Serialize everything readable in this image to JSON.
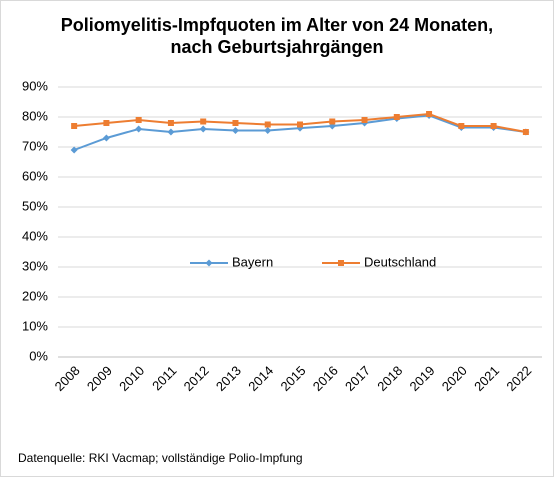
{
  "chart_data": {
    "type": "line",
    "title": "Poliomyelitis-Impfquoten im Alter von 24 Monaten, nach Geburtsjahrgängen",
    "categories": [
      "2008",
      "2009",
      "2010",
      "2011",
      "2012",
      "2013",
      "2014",
      "2015",
      "2016",
      "2017",
      "2018",
      "2019",
      "2020",
      "2021",
      "2022"
    ],
    "series": [
      {
        "name": "Bayern",
        "color": "#5b9bd5",
        "marker": "diamond",
        "values": [
          69,
          73,
          76,
          75,
          76,
          75.5,
          75.5,
          76.3,
          77,
          78,
          79.5,
          80.5,
          76.5,
          76.5,
          75
        ]
      },
      {
        "name": "Deutschland",
        "color": "#ed7d31",
        "marker": "square",
        "values": [
          77,
          78,
          79,
          78,
          78.5,
          78,
          77.5,
          77.5,
          78.5,
          79,
          80,
          81,
          77,
          77,
          75
        ]
      }
    ],
    "ylim": [
      0,
      90
    ],
    "yticks": [
      {
        "value": 0,
        "label": "0%"
      },
      {
        "value": 10,
        "label": "10%"
      },
      {
        "value": 20,
        "label": "20%"
      },
      {
        "value": 30,
        "label": "30%"
      },
      {
        "value": 40,
        "label": "40%"
      },
      {
        "value": 50,
        "label": "50%"
      },
      {
        "value": 60,
        "label": "60%"
      },
      {
        "value": 70,
        "label": "70%"
      },
      {
        "value": 80,
        "label": "80%"
      },
      {
        "value": 90,
        "label": "90%"
      }
    ],
    "grid": true,
    "legend": "center",
    "source": "Datenquelle:  RKI Vacmap; vollständige  Polio-Impfung"
  }
}
